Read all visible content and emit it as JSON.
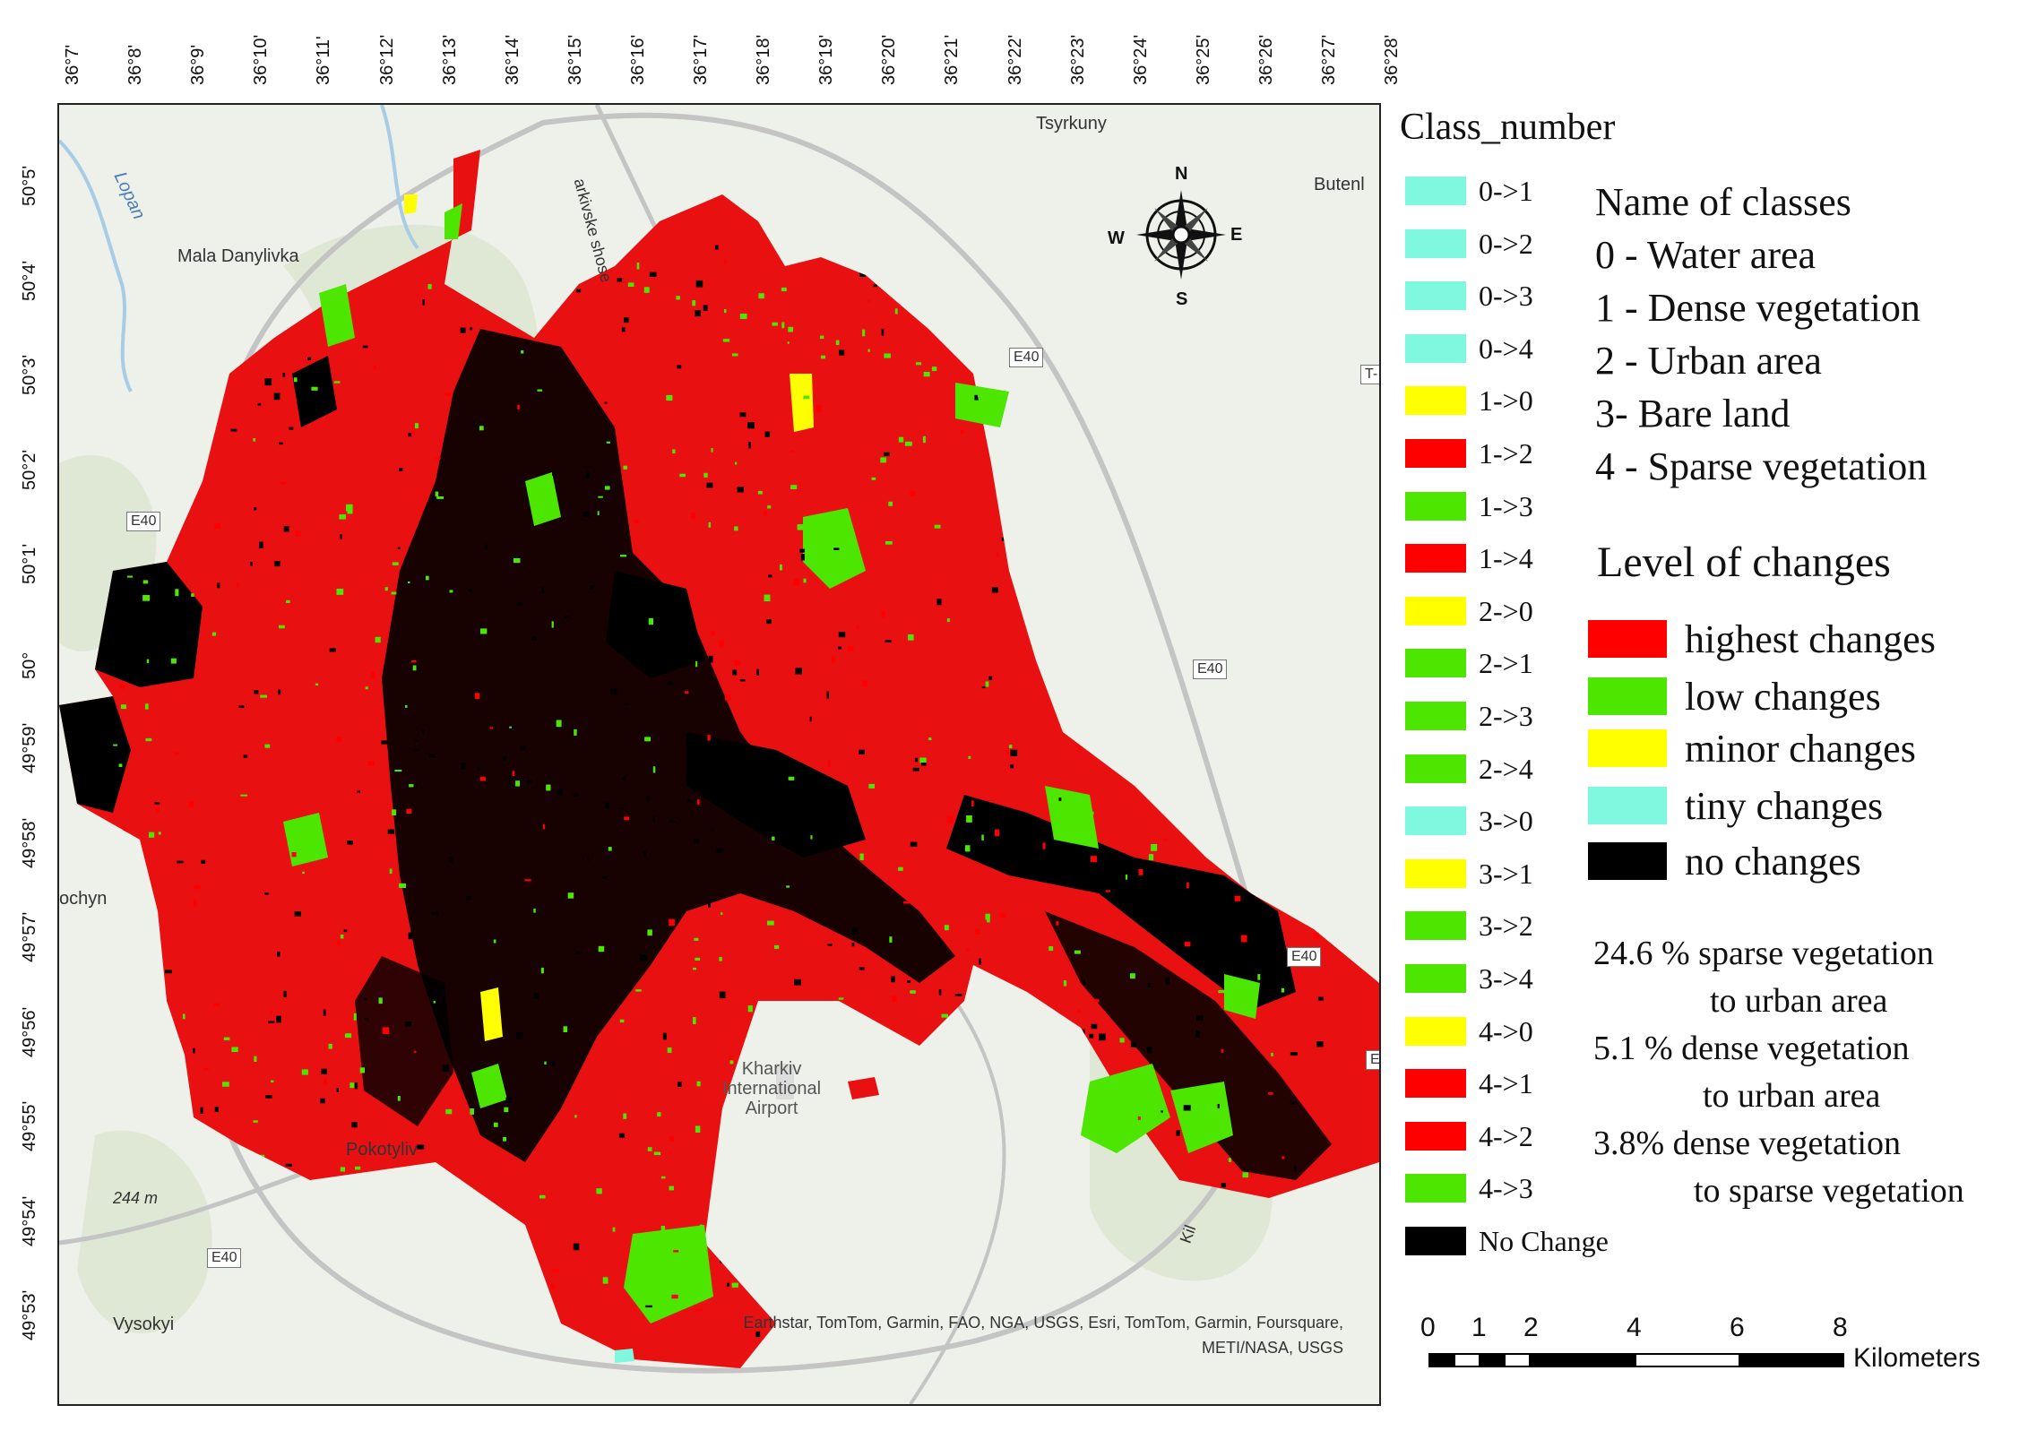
{
  "map": {
    "lon_ticks": [
      "36°7'",
      "36°8'",
      "36°9'",
      "36°10'",
      "36°11'",
      "36°12'",
      "36°13'",
      "36°14'",
      "36°15'",
      "36°16'",
      "36°17'",
      "36°18'",
      "36°19'",
      "36°20'",
      "36°21'",
      "36°22'",
      "36°23'",
      "36°24'",
      "36°25'",
      "36°26'",
      "36°27'",
      "36°28'"
    ],
    "lat_ticks": [
      "50°5'",
      "50°4'",
      "50°3'",
      "50°2'",
      "50°1'",
      "50°",
      "49°59'",
      "49°58'",
      "49°57'",
      "49°56'",
      "49°55'",
      "49°54'",
      "49°53'"
    ],
    "places": {
      "tsyrkuny": "Tsyrkuny",
      "butenky": "Butenl",
      "mala_danylivka": "Mala Danylivka",
      "lopan": "Lopan",
      "kharkivske_shose": "arkivske shose",
      "airport": "Kharkiv\nInternational\nAirport",
      "pokotylivka": "Pokotyliv",
      "elevation": "244 m",
      "vysokyi": "Vysokyi",
      "pisochyn": "ochyn",
      "kil": "Kil"
    },
    "road_badges": [
      "E40",
      "E40",
      "E40",
      "E40",
      "E40",
      "T-",
      "E"
    ],
    "compass": {
      "n": "N",
      "s": "S",
      "e": "E",
      "w": "W"
    },
    "attribution_line1": "Earthstar, TomTom, Garmin, FAO, NGA, USGS, Esri, TomTom, Garmin, Foursquare,",
    "attribution_line2": "METI/NASA, USGS"
  },
  "legend": {
    "title": "Class_number",
    "classes": [
      {
        "label": "0->1",
        "color": "#7ff8e0"
      },
      {
        "label": "0->2",
        "color": "#7ff8e0"
      },
      {
        "label": "0->3",
        "color": "#7ff8e0"
      },
      {
        "label": "0->4",
        "color": "#7ff8e0"
      },
      {
        "label": "1->0",
        "color": "#ffff00"
      },
      {
        "label": "1->2",
        "color": "#ff0000"
      },
      {
        "label": "1->3",
        "color": "#4ce600"
      },
      {
        "label": "1->4",
        "color": "#ff0000"
      },
      {
        "label": "2->0",
        "color": "#ffff00"
      },
      {
        "label": "2->1",
        "color": "#4ce600"
      },
      {
        "label": "2->3",
        "color": "#4ce600"
      },
      {
        "label": "2->4",
        "color": "#4ce600"
      },
      {
        "label": "3->0",
        "color": "#7ff8e0"
      },
      {
        "label": "3->1",
        "color": "#ffff00"
      },
      {
        "label": "3->2",
        "color": "#4ce600"
      },
      {
        "label": "3->4",
        "color": "#4ce600"
      },
      {
        "label": "4->0",
        "color": "#ffff00"
      },
      {
        "label": "4->1",
        "color": "#ff0000"
      },
      {
        "label": "4->2",
        "color": "#ff0000"
      },
      {
        "label": "4->3",
        "color": "#4ce600"
      },
      {
        "label": "No Change",
        "color": "#000000"
      }
    ],
    "names_title": "Name of classes",
    "names": [
      "0 - Water area",
      "1 - Dense vegetation",
      "2 - Urban area",
      "3- Bare land",
      "4 - Sparse vegetation"
    ],
    "levels_title": "Level of changes",
    "levels": [
      {
        "label": "highest changes",
        "color": "#ff0000"
      },
      {
        "label": "low changes",
        "color": "#4ce600"
      },
      {
        "label": "minor changes",
        "color": "#ffff00"
      },
      {
        "label": "tiny changes",
        "color": "#7ff8e0"
      },
      {
        "label": "no changes",
        "color": "#000000"
      }
    ],
    "stats": [
      "24.6 % sparse vegetation",
      "to urban area",
      "5.1 %  dense vegetation",
      "to urban area",
      "3.8%  dense vegetation",
      "to sparse vegetation"
    ]
  },
  "scale_bar": {
    "labels": [
      "0",
      "1",
      "2",
      "4",
      "6",
      "8"
    ],
    "unit": "Kilometers"
  }
}
